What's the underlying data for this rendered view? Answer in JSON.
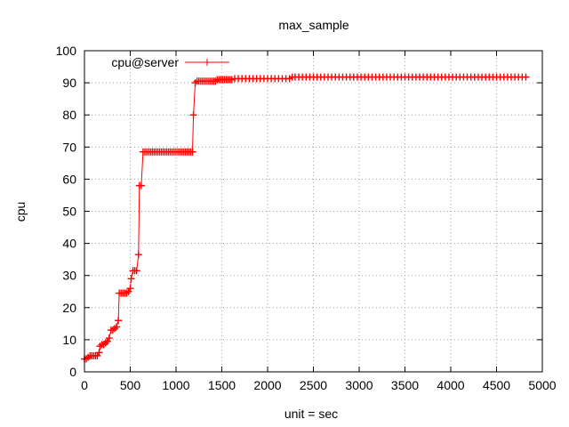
{
  "chart_data": {
    "type": "line",
    "title": "max_sample",
    "xlabel": "unit = sec",
    "ylabel": "cpu",
    "xlim": [
      0,
      5000
    ],
    "ylim": [
      0,
      100
    ],
    "x_ticks": [
      0,
      500,
      1000,
      1500,
      2000,
      2500,
      3000,
      3500,
      4000,
      4500,
      5000
    ],
    "y_ticks": [
      0,
      10,
      20,
      30,
      40,
      50,
      60,
      70,
      80,
      90,
      100
    ],
    "grid": true,
    "legend_position": "top-left",
    "colors": {
      "series": "#ff0000",
      "grid": "#a0a0a0",
      "axis": "#000000"
    },
    "series": [
      {
        "name": "cpu@server",
        "marker": "plus",
        "points": [
          [
            0,
            4
          ],
          [
            20,
            4
          ],
          [
            40,
            4.5
          ],
          [
            60,
            5
          ],
          [
            80,
            5
          ],
          [
            100,
            5
          ],
          [
            120,
            5
          ],
          [
            140,
            5
          ],
          [
            160,
            6
          ],
          [
            170,
            8
          ],
          [
            190,
            8.5
          ],
          [
            210,
            8.5
          ],
          [
            230,
            9
          ],
          [
            250,
            9.5
          ],
          [
            270,
            10.5
          ],
          [
            290,
            13
          ],
          [
            310,
            13
          ],
          [
            330,
            13.5
          ],
          [
            350,
            14
          ],
          [
            370,
            16
          ],
          [
            380,
            24.5
          ],
          [
            400,
            24.5
          ],
          [
            420,
            24.5
          ],
          [
            440,
            24.5
          ],
          [
            460,
            24.5
          ],
          [
            480,
            25
          ],
          [
            500,
            26
          ],
          [
            510,
            29
          ],
          [
            530,
            31.5
          ],
          [
            550,
            31.5
          ],
          [
            570,
            31.5
          ],
          [
            590,
            36.5
          ],
          [
            600,
            58
          ],
          [
            620,
            58
          ],
          [
            640,
            68.5
          ],
          [
            660,
            68.5
          ],
          [
            680,
            68.5
          ],
          [
            700,
            68.5
          ],
          [
            720,
            68.5
          ],
          [
            740,
            68.5
          ],
          [
            760,
            68.5
          ],
          [
            780,
            68.5
          ],
          [
            800,
            68.5
          ],
          [
            820,
            68.5
          ],
          [
            840,
            68.5
          ],
          [
            860,
            68.5
          ],
          [
            880,
            68.5
          ],
          [
            900,
            68.5
          ],
          [
            920,
            68.5
          ],
          [
            940,
            68.5
          ],
          [
            960,
            68.5
          ],
          [
            980,
            68.5
          ],
          [
            1000,
            68.5
          ],
          [
            1020,
            68.5
          ],
          [
            1040,
            68.5
          ],
          [
            1060,
            68.5
          ],
          [
            1080,
            68.5
          ],
          [
            1100,
            68.5
          ],
          [
            1120,
            68.5
          ],
          [
            1140,
            68.5
          ],
          [
            1160,
            68.5
          ],
          [
            1180,
            68.5
          ],
          [
            1190,
            80
          ],
          [
            1210,
            90
          ],
          [
            1230,
            90.5
          ],
          [
            1250,
            90.5
          ],
          [
            1270,
            90.5
          ],
          [
            1290,
            90.5
          ],
          [
            1310,
            90.5
          ],
          [
            1330,
            90.5
          ],
          [
            1350,
            90.5
          ],
          [
            1370,
            90.5
          ],
          [
            1390,
            90.5
          ],
          [
            1410,
            90.5
          ],
          [
            1430,
            90.5
          ],
          [
            1450,
            91
          ],
          [
            1470,
            91
          ],
          [
            1490,
            91
          ],
          [
            1510,
            91
          ],
          [
            1530,
            91
          ],
          [
            1550,
            91
          ],
          [
            1570,
            91
          ],
          [
            1590,
            91
          ],
          [
            1610,
            91
          ],
          [
            1640,
            91.3
          ],
          [
            1680,
            91.3
          ],
          [
            1720,
            91.3
          ],
          [
            1760,
            91.3
          ],
          [
            1800,
            91.3
          ],
          [
            1840,
            91.3
          ],
          [
            1880,
            91.3
          ],
          [
            1920,
            91.3
          ],
          [
            1960,
            91.3
          ],
          [
            2000,
            91.3
          ],
          [
            2040,
            91.3
          ],
          [
            2080,
            91.3
          ],
          [
            2120,
            91.3
          ],
          [
            2160,
            91.3
          ],
          [
            2200,
            91.3
          ],
          [
            2240,
            91.3
          ],
          [
            2270,
            91.8
          ],
          [
            2300,
            91.8
          ],
          [
            2340,
            91.8
          ],
          [
            2380,
            91.8
          ],
          [
            2420,
            91.8
          ],
          [
            2460,
            91.8
          ],
          [
            2500,
            91.8
          ],
          [
            2540,
            91.8
          ],
          [
            2580,
            91.8
          ],
          [
            2620,
            91.8
          ],
          [
            2660,
            91.8
          ],
          [
            2700,
            91.8
          ],
          [
            2740,
            91.8
          ],
          [
            2780,
            91.8
          ],
          [
            2820,
            91.8
          ],
          [
            2860,
            91.8
          ],
          [
            2900,
            91.8
          ],
          [
            2940,
            91.8
          ],
          [
            2980,
            91.8
          ],
          [
            3020,
            91.8
          ],
          [
            3060,
            91.8
          ],
          [
            3100,
            91.8
          ],
          [
            3140,
            91.8
          ],
          [
            3180,
            91.8
          ],
          [
            3220,
            91.8
          ],
          [
            3260,
            91.8
          ],
          [
            3300,
            91.8
          ],
          [
            3340,
            91.8
          ],
          [
            3380,
            91.8
          ],
          [
            3420,
            91.8
          ],
          [
            3460,
            91.8
          ],
          [
            3500,
            91.8
          ],
          [
            3540,
            91.8
          ],
          [
            3580,
            91.8
          ],
          [
            3620,
            91.8
          ],
          [
            3660,
            91.8
          ],
          [
            3700,
            91.8
          ],
          [
            3740,
            91.8
          ],
          [
            3780,
            91.8
          ],
          [
            3820,
            91.8
          ],
          [
            3860,
            91.8
          ],
          [
            3900,
            91.8
          ],
          [
            3940,
            91.8
          ],
          [
            3980,
            91.8
          ],
          [
            4020,
            91.8
          ],
          [
            4060,
            91.8
          ],
          [
            4100,
            91.8
          ],
          [
            4140,
            91.8
          ],
          [
            4180,
            91.8
          ],
          [
            4220,
            91.8
          ],
          [
            4260,
            91.8
          ],
          [
            4300,
            91.8
          ],
          [
            4340,
            91.8
          ],
          [
            4380,
            91.8
          ],
          [
            4420,
            91.8
          ],
          [
            4460,
            91.8
          ],
          [
            4500,
            91.8
          ],
          [
            4540,
            91.8
          ],
          [
            4580,
            91.8
          ],
          [
            4620,
            91.8
          ],
          [
            4660,
            91.8
          ],
          [
            4700,
            91.8
          ],
          [
            4740,
            91.8
          ],
          [
            4780,
            91.8
          ],
          [
            4820,
            91.8
          ]
        ]
      }
    ]
  }
}
